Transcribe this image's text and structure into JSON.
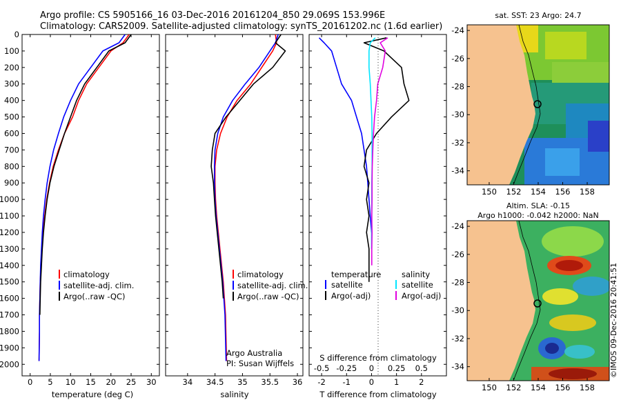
{
  "header": {
    "line1": "Argo profile: CS 5905166_16 03-Dec-2016 20161204_850 29.069S 153.996E",
    "line2": "Climatology: CARS2009. Satellite-adjusted climatology: synTS_20161202.nc (1.6d earlier)"
  },
  "colors": {
    "climatology": "#ff0000",
    "satellite": "#0000ff",
    "argo": "#000000",
    "sat_salinity": "#00e5ff",
    "argo_salinity": "#e000e0",
    "land": "#f6c28f"
  },
  "chart_data": [
    {
      "type": "line",
      "id": "temperature",
      "xlabel": "temperature (deg C)",
      "ylabel": "",
      "xlim": [
        -2,
        32
      ],
      "ylim": [
        2070,
        0
      ],
      "xticks": [
        0,
        5,
        10,
        15,
        20,
        25,
        30
      ],
      "yticks": [
        0,
        100,
        200,
        300,
        400,
        500,
        600,
        700,
        800,
        900,
        1000,
        1100,
        1200,
        1300,
        1400,
        1500,
        1600,
        1700,
        1800,
        1900,
        2000
      ],
      "legend": [
        "climatology",
        "satellite-adj. clim.",
        "Argo(..raw -QC)"
      ],
      "legend_position": "middle-right",
      "series": [
        {
          "name": "climatology",
          "color": "#ff0000",
          "x": [
            24.5,
            23,
            20,
            17,
            14,
            12,
            10.5,
            8.5,
            7,
            5.7,
            4.8,
            4.1,
            3.6,
            3.2,
            2.9,
            2.7,
            2.5,
            2.4,
            2.3,
            2.3,
            2.2
          ],
          "y": [
            0,
            50,
            100,
            200,
            300,
            400,
            500,
            600,
            700,
            800,
            900,
            1000,
            1100,
            1200,
            1300,
            1400,
            1500,
            1600,
            1700,
            1800,
            1980
          ]
        },
        {
          "name": "satellite-adj. clim.",
          "color": "#0000ff",
          "x": [
            23.5,
            22,
            18,
            15,
            12,
            10,
            8.3,
            7,
            5.8,
            4.9,
            4.2,
            3.7,
            3.3,
            3,
            2.8,
            2.6,
            2.5,
            2.4,
            2.3,
            2.3,
            2.2
          ],
          "y": [
            0,
            50,
            100,
            200,
            300,
            400,
            500,
            600,
            700,
            800,
            900,
            1000,
            1100,
            1200,
            1300,
            1400,
            1500,
            1600,
            1700,
            1800,
            1980
          ]
        },
        {
          "name": "Argo(..raw -QC)",
          "color": "#000000",
          "x": [
            25,
            23.5,
            19.5,
            16.5,
            13.5,
            11.5,
            10,
            8.5,
            7.2,
            5.9,
            4.9,
            4.2,
            3.7,
            3.3,
            3,
            2.8,
            2.6,
            2.5,
            2.4
          ],
          "y": [
            0,
            50,
            100,
            200,
            300,
            400,
            500,
            600,
            700,
            800,
            900,
            1000,
            1100,
            1200,
            1300,
            1400,
            1500,
            1600,
            1700
          ]
        }
      ]
    },
    {
      "type": "line",
      "id": "salinity",
      "xlabel": "salinity",
      "ylabel": "",
      "xlim": [
        33.6,
        36.1
      ],
      "ylim": [
        2070,
        0
      ],
      "xticks": [
        34,
        34.5,
        35,
        35.5,
        36
      ],
      "legend": [
        "climatology",
        "satellite-adj. clim.",
        "Argo(..raw -QC)"
      ],
      "legend_position": "middle-right",
      "annotation": [
        "Argo Australia",
        "PI: Susan Wijffels"
      ],
      "series": [
        {
          "name": "climatology",
          "color": "#ff0000",
          "x": [
            35.6,
            35.62,
            35.55,
            35.35,
            35.15,
            34.9,
            34.72,
            34.6,
            34.53,
            34.5,
            34.5,
            34.51,
            34.53,
            34.56,
            34.59,
            34.62,
            34.65,
            34.67,
            34.69,
            34.71
          ],
          "y": [
            0,
            50,
            100,
            200,
            300,
            400,
            500,
            600,
            700,
            800,
            900,
            1000,
            1100,
            1200,
            1300,
            1400,
            1500,
            1600,
            1700,
            1980
          ]
        },
        {
          "name": "satellite-adj. clim.",
          "color": "#0000ff",
          "x": [
            35.65,
            35.6,
            35.5,
            35.3,
            35.05,
            34.82,
            34.65,
            34.55,
            34.5,
            34.49,
            34.49,
            34.5,
            34.52,
            34.55,
            34.58,
            34.61,
            34.64,
            34.66,
            34.68,
            34.7
          ],
          "y": [
            0,
            50,
            100,
            200,
            300,
            400,
            500,
            600,
            700,
            800,
            900,
            1000,
            1100,
            1200,
            1300,
            1400,
            1500,
            1600,
            1700,
            1980
          ]
        },
        {
          "name": "Argo(..raw -QC)",
          "color": "#000000",
          "x": [
            35.7,
            35.6,
            35.78,
            35.55,
            35.2,
            34.95,
            34.7,
            34.5,
            34.45,
            34.43,
            34.47,
            34.49,
            34.51,
            34.54,
            34.57,
            34.6,
            34.63,
            34.65
          ],
          "y": [
            0,
            50,
            100,
            200,
            300,
            400,
            500,
            600,
            700,
            800,
            900,
            1000,
            1100,
            1200,
            1300,
            1400,
            1500,
            1600
          ]
        }
      ]
    },
    {
      "type": "line",
      "id": "differences",
      "xlabel": "T difference from climatology",
      "xlabel_top": "S difference from climatology",
      "xlim": [
        -2.5,
        3
      ],
      "ylim": [
        2070,
        0
      ],
      "xticks": [
        -2,
        -1,
        0,
        1,
        2
      ],
      "xticks_s": [
        "-0.5",
        "-0.25",
        "0",
        "0.25",
        "0.5"
      ],
      "legend": [
        "temperature",
        "satellite",
        "Argo(-adj)",
        "salinity",
        "satellite",
        "Argo(-adj)"
      ],
      "legend_position": "bottom",
      "series": [
        {
          "name": "temperature satellite",
          "color": "#0000ff",
          "x": [
            -2.1,
            -1.9,
            -1.6,
            -1.4,
            -1.2,
            -0.8,
            -0.6,
            -0.4,
            -0.3,
            -0.2,
            -0.15,
            -0.1,
            -0.05,
            0
          ],
          "y": [
            20,
            50,
            100,
            200,
            300,
            400,
            500,
            600,
            700,
            800,
            900,
            1000,
            1100,
            1200
          ]
        },
        {
          "name": "temperature Argo(-adj)",
          "color": "#000000",
          "x": [
            0.6,
            -0.3,
            0.5,
            1.2,
            1.3,
            1.5,
            0.8,
            0.2,
            -0.2,
            -0.3,
            -0.1,
            -0.2,
            -0.1,
            -0.2,
            -0.1,
            -0.1,
            -0.1
          ],
          "y": [
            20,
            50,
            100,
            200,
            300,
            400,
            500,
            600,
            700,
            800,
            900,
            1000,
            1100,
            1200,
            1300,
            1400,
            1500
          ]
        },
        {
          "name": "salinity satellite",
          "color": "#00e5ff",
          "x": [
            0.15,
            -0.05,
            -0.1,
            -0.1,
            -0.05,
            -0.02,
            0.01,
            0.02,
            0.02,
            0.02,
            0.01,
            0.01,
            0.01,
            0,
            0
          ],
          "y": [
            20,
            50,
            100,
            200,
            300,
            400,
            500,
            600,
            700,
            800,
            900,
            1000,
            1100,
            1200,
            1300
          ]
        },
        {
          "name": "salinity Argo(-adj)",
          "color": "#e000e0",
          "x": [
            0.65,
            0.35,
            0.55,
            0.45,
            0.25,
            0.2,
            0.12,
            0.08,
            0.05,
            0.03,
            0.02,
            0.02,
            0.01,
            0.02,
            0.01,
            0.01
          ],
          "y": [
            20,
            50,
            100,
            200,
            300,
            400,
            500,
            600,
            700,
            800,
            900,
            1000,
            1100,
            1200,
            1300,
            1400
          ]
        }
      ]
    },
    {
      "type": "heatmap",
      "id": "sst-map",
      "title": "sat. SST: 23  Argo: 24.7",
      "xticks": [
        150,
        152,
        154,
        156,
        158
      ],
      "yticks": [
        -24,
        -26,
        -28,
        -30,
        -32,
        -34
      ],
      "xlim": [
        148.2,
        159.8
      ],
      "ylim": [
        -35,
        -23.6
      ],
      "profile_location": [
        153.996,
        -29.069
      ]
    },
    {
      "type": "heatmap",
      "id": "sla-map",
      "title_line1": "Altim. SLA: -0.15",
      "title_line2": "Argo h1000: -0.042 h2000: NaN",
      "xticks": [
        150,
        152,
        154,
        156,
        158
      ],
      "yticks": [
        -24,
        -26,
        -28,
        -30,
        -32,
        -34
      ],
      "xlim": [
        148.2,
        159.8
      ],
      "ylim": [
        -35,
        -23.6
      ],
      "profile_location": [
        153.996,
        -29.069
      ]
    }
  ],
  "footer": {
    "stamp": "©IMOS 09-Dec-2016 20:41:51"
  }
}
